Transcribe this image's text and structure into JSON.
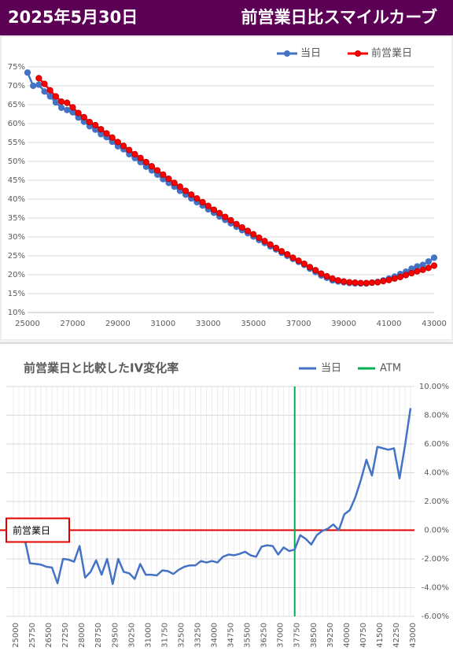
{
  "header": {
    "date": "2025年5月30日",
    "title": "前営業日比スマイルカーブ"
  },
  "chart_data": [
    {
      "type": "line",
      "x": [
        25000,
        25250,
        25500,
        25750,
        26000,
        26250,
        26500,
        26750,
        27000,
        27250,
        27500,
        27750,
        28000,
        28250,
        28500,
        28750,
        29000,
        29250,
        29500,
        29750,
        30000,
        30250,
        30500,
        30750,
        31000,
        31250,
        31500,
        31750,
        32000,
        32250,
        32500,
        32750,
        33000,
        33250,
        33500,
        33750,
        34000,
        34250,
        34500,
        34750,
        35000,
        35250,
        35500,
        35750,
        36000,
        36250,
        36500,
        36750,
        37000,
        37250,
        37500,
        37750,
        38000,
        38250,
        38500,
        38750,
        39000,
        39250,
        39500,
        39750,
        40000,
        40250,
        40500,
        40750,
        41000,
        41250,
        41500,
        41750,
        42000,
        42250,
        42500,
        42750,
        43000
      ],
      "series": [
        {
          "name": "当日",
          "color": "#4472c4",
          "values": [
            73.5,
            70.0,
            70.3,
            68.5,
            67.2,
            65.6,
            64.2,
            63.6,
            63.0,
            61.6,
            60.5,
            59.3,
            58.4,
            57.2,
            56.4,
            55.2,
            54.0,
            53.2,
            51.9,
            50.9,
            49.8,
            48.6,
            47.6,
            46.5,
            45.3,
            44.3,
            43.3,
            42.2,
            41.2,
            40.2,
            39.2,
            38.3,
            37.3,
            36.4,
            35.4,
            34.5,
            33.6,
            32.7,
            31.8,
            31.0,
            30.1,
            29.2,
            28.4,
            27.5,
            26.7,
            25.8,
            25.0,
            24.2,
            23.4,
            22.6,
            21.6,
            20.7,
            19.8,
            19.2,
            18.5,
            18.2,
            18.0,
            17.8,
            17.7,
            17.7,
            17.7,
            17.9,
            18.1,
            18.5,
            19.0,
            19.5,
            20.2,
            20.8,
            21.6,
            22.2,
            22.6,
            23.5,
            24.5
          ]
        },
        {
          "name": "前営業日",
          "color": "#ff0000",
          "values": [
            null,
            null,
            72.0,
            70.5,
            68.8,
            67.2,
            65.8,
            65.5,
            64.3,
            62.8,
            61.7,
            60.4,
            59.6,
            58.5,
            57.4,
            56.3,
            55.1,
            54.1,
            53.0,
            51.9,
            50.9,
            49.8,
            48.7,
            47.6,
            46.5,
            45.4,
            44.3,
            43.3,
            42.2,
            41.2,
            40.2,
            39.2,
            38.2,
            37.2,
            36.3,
            35.3,
            34.4,
            33.4,
            32.5,
            31.6,
            30.7,
            29.8,
            28.9,
            28.0,
            27.1,
            26.2,
            25.4,
            24.5,
            23.7,
            22.9,
            22.0,
            21.2,
            20.3,
            19.6,
            19.0,
            18.5,
            18.2,
            18.0,
            17.9,
            17.8,
            17.8,
            17.9,
            18.0,
            18.3,
            18.6,
            19.0,
            19.4,
            19.9,
            20.4,
            20.9,
            21.3,
            21.8,
            22.4
          ]
        }
      ],
      "xlim": [
        25000,
        43000
      ],
      "xticks": [
        25000,
        27000,
        29000,
        31000,
        33000,
        35000,
        37000,
        39000,
        41000,
        43000
      ],
      "ylim": [
        10,
        75
      ],
      "yticks": [
        {
          "value": 10,
          "label": "10%"
        },
        {
          "value": 15,
          "label": "15%"
        },
        {
          "value": 20,
          "label": "20%"
        },
        {
          "value": 25,
          "label": "25%"
        },
        {
          "value": 30,
          "label": "30%"
        },
        {
          "value": 35,
          "label": "35%"
        },
        {
          "value": 40,
          "label": "40%"
        },
        {
          "value": 45,
          "label": "45%"
        },
        {
          "value": 50,
          "label": "50%"
        },
        {
          "value": 55,
          "label": "55%"
        },
        {
          "value": 60,
          "label": "60%"
        },
        {
          "value": 65,
          "label": "65%"
        },
        {
          "value": 70,
          "label": "70%"
        },
        {
          "value": 75,
          "label": "75%"
        }
      ],
      "grid": true
    },
    {
      "type": "line",
      "title": "前営業日と比較したIV変化率",
      "categories": [
        "25000",
        null,
        null,
        "25750",
        null,
        null,
        "26500",
        null,
        null,
        "27250",
        null,
        null,
        "28000",
        null,
        null,
        "28750",
        null,
        null,
        "29500",
        null,
        null,
        "30250",
        null,
        null,
        "31000",
        null,
        null,
        "31750",
        null,
        null,
        "32500",
        null,
        null,
        "33250",
        null,
        null,
        "34000",
        null,
        null,
        "34750",
        null,
        null,
        "35500",
        null,
        null,
        "36250",
        null,
        null,
        "37000",
        null,
        null,
        "37750",
        null,
        null,
        "38500",
        null,
        null,
        "39250",
        null,
        null,
        "40000",
        null,
        null,
        "40750",
        null,
        null,
        "41500",
        null,
        null,
        "42250",
        null,
        null,
        "43000"
      ],
      "series": [
        {
          "name": "当日",
          "color": "#4472c4",
          "axis": "y2",
          "values": [
            null,
            null,
            -0.5,
            -2.3,
            -2.35,
            -2.4,
            -2.55,
            -2.6,
            -3.7,
            -2.0,
            -2.05,
            -2.2,
            -1.1,
            -3.3,
            -2.9,
            -2.1,
            -3.1,
            -2.0,
            -3.75,
            -2.0,
            -2.9,
            -3.0,
            -3.4,
            -2.35,
            -3.1,
            -3.1,
            -3.15,
            -2.8,
            -2.85,
            -3.05,
            -2.75,
            -2.55,
            -2.45,
            -2.45,
            -2.15,
            -2.25,
            -2.15,
            -2.25,
            -1.85,
            -1.7,
            -1.75,
            -1.65,
            -1.5,
            -1.75,
            -1.85,
            -1.15,
            -1.05,
            -1.1,
            -1.7,
            -1.2,
            -1.45,
            -1.35,
            -0.35,
            -0.6,
            -1.0,
            -0.35,
            -0.05,
            0.1,
            0.4,
            0.0,
            1.1,
            1.4,
            2.3,
            3.5,
            4.9,
            3.8,
            5.8,
            5.7,
            5.6,
            5.7,
            3.6,
            5.9,
            8.5
          ]
        }
      ],
      "atm": {
        "name": "ATM",
        "color": "#00b050",
        "x": 37750
      },
      "reference_line": {
        "label": "前営業日",
        "value": 0,
        "color": "#e00000"
      },
      "y2lim": [
        -6,
        10
      ],
      "y2ticks": [
        {
          "value": -6,
          "label": "-6.00%"
        },
        {
          "value": -4,
          "label": "-4.00%"
        },
        {
          "value": -2,
          "label": "-2.00%"
        },
        {
          "value": 0,
          "label": "0.00%"
        },
        {
          "value": 2,
          "label": "2.00%"
        },
        {
          "value": 4,
          "label": "4.00%"
        },
        {
          "value": 6,
          "label": "6.00%"
        },
        {
          "value": 8,
          "label": "8.00%"
        },
        {
          "value": 10,
          "label": "10.00%"
        }
      ],
      "grid": true
    }
  ]
}
